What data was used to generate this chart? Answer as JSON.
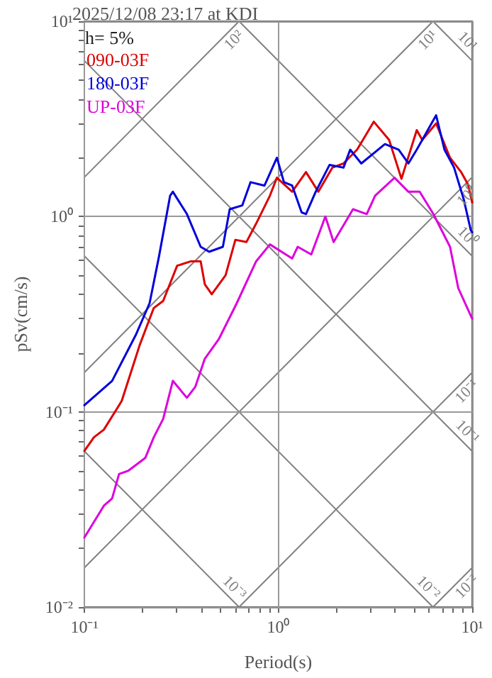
{
  "chart_data": {
    "type": "line",
    "title": "2025/12/08 23:17 at KDI",
    "xlabel": "Period(s)",
    "ylabel": "pSv(cm/s)",
    "annotations": [
      "h= 5%"
    ],
    "log": "xy",
    "grid": true,
    "legend": "top left",
    "xlim": [
      0.1,
      10
    ],
    "ylim": [
      0.01,
      10
    ],
    "xticks": [
      {
        "value": 0.1,
        "label": "10⁻¹"
      },
      {
        "value": 0.2,
        "label": null
      },
      {
        "value": 0.3,
        "label": null
      },
      {
        "value": 0.4,
        "label": null
      },
      {
        "value": 0.5,
        "label": null
      },
      {
        "value": 0.6,
        "label": null
      },
      {
        "value": 0.7,
        "label": null
      },
      {
        "value": 0.8,
        "label": null
      },
      {
        "value": 0.9,
        "label": null
      },
      {
        "value": 1,
        "label": "10⁰"
      },
      {
        "value": 2,
        "label": null
      },
      {
        "value": 3,
        "label": null
      },
      {
        "value": 4,
        "label": null
      },
      {
        "value": 5,
        "label": null
      },
      {
        "value": 6,
        "label": null
      },
      {
        "value": 7,
        "label": null
      },
      {
        "value": 8,
        "label": null
      },
      {
        "value": 9,
        "label": null
      },
      {
        "value": 10,
        "label": "10¹"
      }
    ],
    "yticks": [
      {
        "value": 0.01,
        "label": "10⁻²"
      },
      {
        "value": 0.02,
        "label": null
      },
      {
        "value": 0.03,
        "label": null
      },
      {
        "value": 0.04,
        "label": null
      },
      {
        "value": 0.05,
        "label": null
      },
      {
        "value": 0.06,
        "label": null
      },
      {
        "value": 0.07,
        "label": null
      },
      {
        "value": 0.08,
        "label": null
      },
      {
        "value": 0.09,
        "label": null
      },
      {
        "value": 0.1,
        "label": "10⁻¹"
      },
      {
        "value": 0.2,
        "label": null
      },
      {
        "value": 0.3,
        "label": null
      },
      {
        "value": 0.4,
        "label": null
      },
      {
        "value": 0.5,
        "label": null
      },
      {
        "value": 0.6,
        "label": null
      },
      {
        "value": 0.7,
        "label": null
      },
      {
        "value": 0.8,
        "label": null
      },
      {
        "value": 0.9,
        "label": null
      },
      {
        "value": 1,
        "label": "10⁰"
      },
      {
        "value": 2,
        "label": null
      },
      {
        "value": 3,
        "label": null
      },
      {
        "value": 4,
        "label": null
      },
      {
        "value": 5,
        "label": null
      },
      {
        "value": 6,
        "label": null
      },
      {
        "value": 7,
        "label": null
      },
      {
        "value": 8,
        "label": null
      },
      {
        "value": 9,
        "label": null
      },
      {
        "value": 10,
        "label": "10¹"
      }
    ],
    "series": [
      {
        "name": "090-03F",
        "color": "#dd0000",
        "x": [
          0.1,
          0.112,
          0.126,
          0.151,
          0.156,
          0.193,
          0.228,
          0.255,
          0.301,
          0.355,
          0.398,
          0.418,
          0.454,
          0.535,
          0.601,
          0.685,
          0.769,
          0.906,
          0.984,
          1.18,
          1.39,
          1.61,
          1.9,
          2.17,
          2.55,
          3.11,
          3.73,
          4.32,
          5.18,
          5.53,
          6.52,
          7.69,
          8.77,
          9.52,
          10
        ],
        "values": [
          0.063,
          0.074,
          0.081,
          0.108,
          0.114,
          0.22,
          0.34,
          0.37,
          0.56,
          0.59,
          0.59,
          0.45,
          0.4,
          0.5,
          0.76,
          0.74,
          0.92,
          1.28,
          1.58,
          1.34,
          1.69,
          1.34,
          1.78,
          1.87,
          2.2,
          3.06,
          2.47,
          1.56,
          2.77,
          2.47,
          3.0,
          2.0,
          1.69,
          1.46,
          1.18
        ]
      },
      {
        "name": "180-03F",
        "color": "#0000dd",
        "x": [
          0.1,
          0.139,
          0.184,
          0.217,
          0.243,
          0.277,
          0.286,
          0.338,
          0.398,
          0.44,
          0.518,
          0.562,
          0.652,
          0.72,
          0.849,
          0.984,
          1.07,
          1.18,
          1.32,
          1.39,
          1.56,
          1.84,
          2.17,
          2.35,
          2.68,
          3.55,
          4.18,
          4.69,
          5.18,
          6.52,
          7.2,
          8.07,
          9.06,
          9.84,
          10
        ],
        "values": [
          0.108,
          0.144,
          0.247,
          0.36,
          0.63,
          1.28,
          1.34,
          1.03,
          0.7,
          0.66,
          0.7,
          1.09,
          1.14,
          1.5,
          1.44,
          2.0,
          1.5,
          1.44,
          1.05,
          1.03,
          1.34,
          1.84,
          1.78,
          2.2,
          1.87,
          2.35,
          2.2,
          1.87,
          2.2,
          3.3,
          2.2,
          1.78,
          1.22,
          0.85,
          0.83
        ]
      },
      {
        "name": "UP-03F",
        "color": "#dd00dd",
        "x": [
          0.1,
          0.126,
          0.139,
          0.151,
          0.169,
          0.206,
          0.228,
          0.255,
          0.286,
          0.338,
          0.373,
          0.418,
          0.493,
          0.611,
          0.769,
          0.906,
          1.18,
          1.26,
          1.48,
          1.75,
          1.93,
          2.43,
          2.86,
          3.16,
          3.98,
          4.69,
          5.36,
          6.31,
          7.69,
          8.48,
          10
        ],
        "values": [
          0.0227,
          0.033,
          0.036,
          0.048,
          0.05,
          0.058,
          0.074,
          0.092,
          0.144,
          0.118,
          0.134,
          0.187,
          0.235,
          0.36,
          0.59,
          0.72,
          0.61,
          0.7,
          0.64,
          1.0,
          0.74,
          1.09,
          1.03,
          1.28,
          1.58,
          1.34,
          1.34,
          1.03,
          0.7,
          0.43,
          0.3
        ]
      },
      {
        "name": "10²",
        "color": "#808080",
        "x": [
          0.1,
          0.628
        ],
        "values": [
          1.59,
          10
        ]
      },
      {
        "name": "10¹",
        "color": "#808080",
        "x": [
          0.1,
          6.28
        ],
        "values": [
          0.159,
          10
        ]
      },
      {
        "name": "10⁰",
        "color": "#808080",
        "x": [
          0.1,
          10
        ],
        "values": [
          0.0159,
          1.59
        ]
      },
      {
        "name": "10⁻¹",
        "color": "#808080",
        "x": [
          0.628,
          10
        ],
        "values": [
          0.01,
          0.159
        ]
      },
      {
        "name": "10⁻²",
        "color": "#808080",
        "x": [
          6.28,
          10
        ],
        "values": [
          0.01,
          0.0159
        ]
      },
      {
        "name": "10¹",
        "color": "#808080",
        "x": [
          6.28,
          10
        ],
        "values": [
          10,
          6.28
        ]
      },
      {
        "name": "10⁰",
        "color": "#808080",
        "x": [
          0.628,
          10
        ],
        "values": [
          10,
          0.628
        ]
      },
      {
        "name": "10⁻¹",
        "color": "#808080",
        "x": [
          0.1,
          10
        ],
        "values": [
          6.28,
          0.0628
        ]
      },
      {
        "name": "10⁻²",
        "color": "#808080",
        "x": [
          0.1,
          6.28
        ],
        "values": [
          0.628,
          0.01
        ]
      },
      {
        "name": "10⁻³",
        "color": "#808080",
        "x": [
          0.1,
          0.628
        ],
        "values": [
          0.0628,
          0.01
        ]
      }
    ]
  }
}
